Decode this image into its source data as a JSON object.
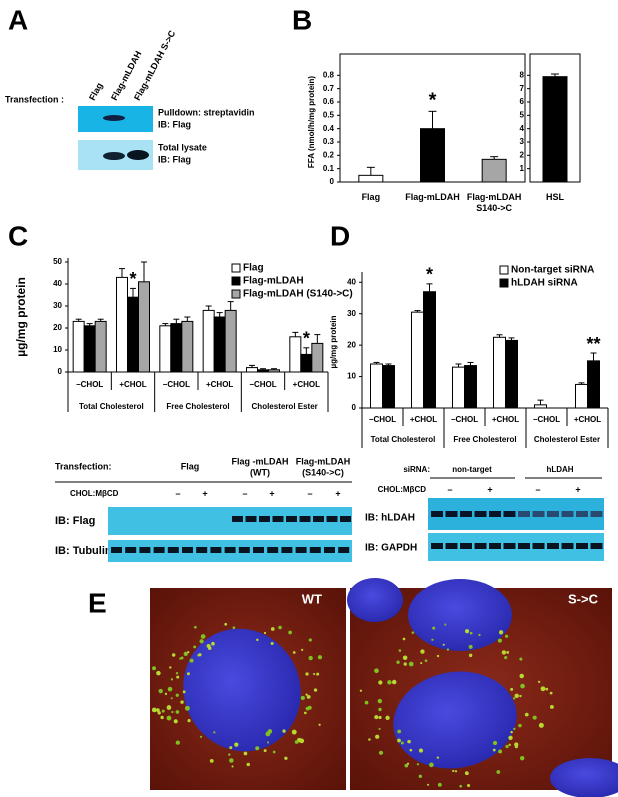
{
  "panel_labels": [
    "A",
    "B",
    "C",
    "D",
    "E"
  ],
  "panel_a": {
    "row_label": "Transfection :",
    "lanes": [
      "Flag",
      "Flag-mLDAH",
      "Flag-mLDAH S->C"
    ],
    "blots": [
      [
        "Pulldown: streptavidin",
        "IB: Flag"
      ],
      [
        "Total lysate",
        "IB: Flag"
      ]
    ]
  },
  "chart_data": [
    {
      "type": "bar",
      "ylabel": "FFA (nmol/h/mg protein)",
      "categories": [
        "Flag",
        "Flag-mLDAH",
        "Flag-mLDAH S140->C"
      ],
      "values": [
        0.05,
        0.4,
        0.17
      ],
      "errors": [
        0.06,
        0.13,
        0.02
      ],
      "colors": [
        "#ffffff",
        "#000000",
        "#a6a6a6"
      ],
      "markers": [
        null,
        "*",
        null
      ],
      "ylim": [
        0,
        0.9
      ],
      "yticks": [
        0,
        0.1,
        0.2,
        0.3,
        0.4,
        0.5,
        0.6,
        0.7,
        0.8
      ]
    },
    {
      "type": "bar",
      "categories": [
        "HSL"
      ],
      "values": [
        7.9
      ],
      "errors": [
        0.2
      ],
      "colors": [
        "#000000"
      ],
      "ylim": [
        0,
        9
      ],
      "yticks": [
        1,
        2,
        3,
        4,
        5,
        6,
        7,
        8
      ]
    },
    {
      "type": "grouped_bar",
      "ylabel": "µg/mg protein",
      "categories": [
        "−CHOL",
        "+CHOL",
        "−CHOL",
        "+CHOL",
        "−CHOL",
        "+CHOL"
      ],
      "group_labels": [
        "Total Cholesterol",
        "Free Cholesterol",
        "Cholesterol Ester"
      ],
      "series": [
        {
          "name": "Flag",
          "color": "#ffffff",
          "values": [
            23,
            43,
            21,
            28,
            2,
            16
          ],
          "errors": [
            1,
            4,
            1,
            2,
            1,
            2
          ]
        },
        {
          "name": "Flag-mLDAH",
          "color": "#000000",
          "values": [
            21,
            34,
            22,
            25,
            1,
            8
          ],
          "errors": [
            1,
            4,
            2,
            2,
            0.5,
            3
          ],
          "markers": [
            null,
            "*",
            null,
            null,
            null,
            "*"
          ]
        },
        {
          "name": "Flag-mLDAH (S140->C)",
          "color": "#a6a6a6",
          "values": [
            23,
            41,
            23,
            28,
            1,
            13
          ],
          "errors": [
            1,
            9,
            2,
            4,
            0.5,
            4
          ]
        }
      ],
      "ylim": [
        0,
        50
      ],
      "yticks": [
        0,
        10,
        20,
        30,
        40,
        50
      ],
      "legend": "top-right"
    },
    {
      "type": "grouped_bar",
      "ylabel": "µg/mg protein",
      "categories": [
        "−CHOL",
        "+CHOL",
        "−CHOL",
        "+CHOL",
        "−CHOL",
        "+CHOL"
      ],
      "group_labels": [
        "Total Cholesterol",
        "Free Cholesterol",
        "Cholesterol Ester"
      ],
      "series": [
        {
          "name": "Non-target siRNA",
          "color": "#ffffff",
          "values": [
            14,
            30.5,
            13,
            22.5,
            1,
            7.5
          ],
          "errors": [
            0.5,
            0.5,
            1,
            0.8,
            1.5,
            0.5
          ]
        },
        {
          "name": "hLDAH siRNA",
          "color": "#000000",
          "values": [
            13.5,
            37,
            13.5,
            21.5,
            0,
            15
          ],
          "errors": [
            0.5,
            2.5,
            1,
            0.8,
            0,
            2.5
          ],
          "markers": [
            null,
            "*",
            null,
            null,
            null,
            "**"
          ]
        }
      ],
      "ylim": [
        0,
        42
      ],
      "yticks": [
        0,
        10,
        20,
        30,
        40
      ],
      "legend": "top-right"
    }
  ],
  "blot_c": {
    "row_label": "Transfection:",
    "lanes": [
      [
        "Flag"
      ],
      [
        "Flag -mLDAH",
        "(WT)"
      ],
      [
        "Flag-mLDAH",
        "(S140->C)"
      ]
    ],
    "treatment_label": "CHOL:MβCD",
    "treatments": [
      "–",
      "+",
      "–",
      "+",
      "–",
      "+"
    ],
    "blots": [
      "IB: Flag",
      "IB: Tubulin"
    ]
  },
  "blot_d": {
    "row_label": "siRNA:",
    "lanes": [
      "non-target",
      "hLDAH"
    ],
    "treatment_label": "CHOL:MβCD",
    "treatments": [
      "–",
      "+",
      "–",
      "+"
    ],
    "blots": [
      "IB: hLDAH",
      "IB: GAPDH"
    ]
  },
  "panel_e": {
    "images": [
      "WT",
      "S->C"
    ]
  }
}
